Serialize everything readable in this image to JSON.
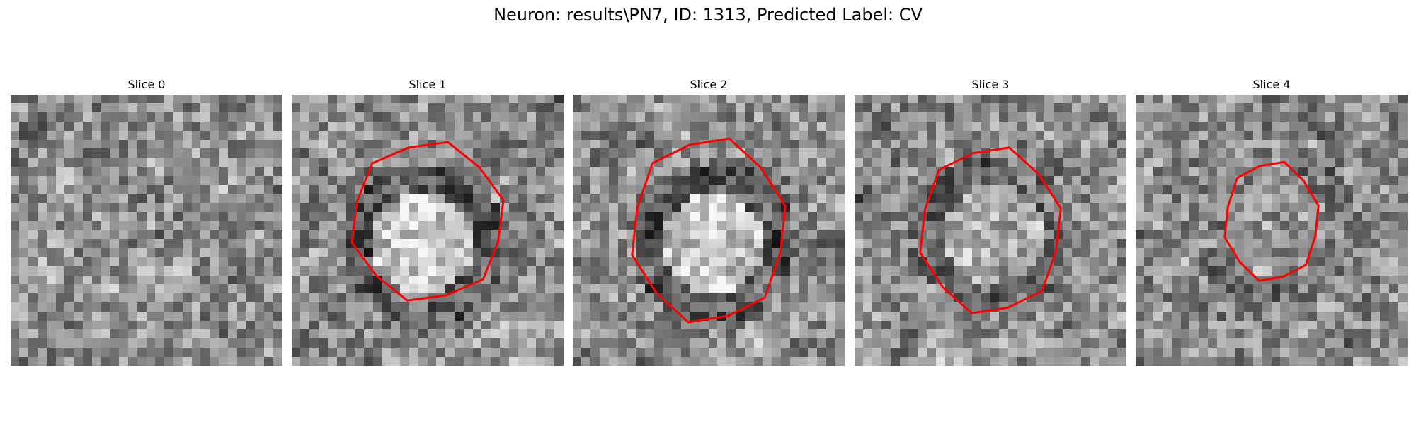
{
  "figure": {
    "title": "Neuron: results\\PN7, ID: 1313, Predicted Label: CV",
    "outline_color": "#ff0000",
    "colormap": "gray"
  },
  "slices": [
    {
      "title": "Slice 0",
      "has_outline": false
    },
    {
      "title": "Slice 1",
      "has_outline": true
    },
    {
      "title": "Slice 2",
      "has_outline": true
    },
    {
      "title": "Slice 3",
      "has_outline": true
    },
    {
      "title": "Slice 4",
      "has_outline": true
    }
  ]
}
